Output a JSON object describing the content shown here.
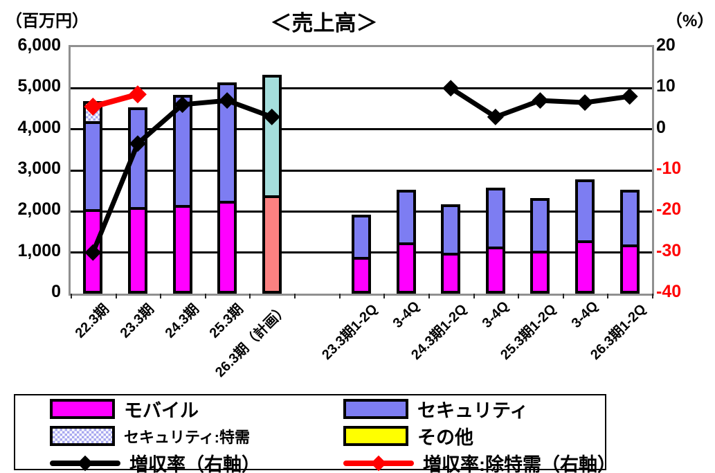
{
  "chart_data": {
    "type": "bar",
    "subtype": "stacked-bars-with-growth-lines",
    "title": "＜売上高＞",
    "left_axis_unit": "（百万円）",
    "right_axis_unit": "（%）",
    "ylim_left": [
      0,
      6000
    ],
    "ylim_right": [
      -40,
      20
    ],
    "yticks_left": [
      "6,000",
      "5,000",
      "4,000",
      "3,000",
      "2,000",
      "1,000",
      "0"
    ],
    "yticks_right": [
      "20",
      "10",
      "0",
      "-10",
      "-20",
      "-30",
      "-40"
    ],
    "grid": "horizontal",
    "categories": [
      "22.3期",
      "23.3期",
      "24.3期",
      "25.3期",
      "26.3期（計画）",
      "",
      "23.3期1-2Q",
      "3-4Q",
      "24.3期1-2Q",
      "3-4Q",
      "25.3期1-2Q",
      "3-4Q",
      "26.3期1-2Q"
    ],
    "bars": [
      {
        "label": "22.3期",
        "total": 4800,
        "segments": [
          {
            "series": "モバイル",
            "color": "mobile",
            "value": 2050
          },
          {
            "series": "セキュリティ",
            "color": "security",
            "value": 2200
          },
          {
            "series": "セキュリティ:特需",
            "color": "tokuju",
            "pattern": "checker",
            "value": 550
          }
        ]
      },
      {
        "label": "23.3期",
        "total": 4600,
        "segments": [
          {
            "series": "モバイル",
            "color": "mobile",
            "value": 2100
          },
          {
            "series": "セキュリティ",
            "color": "security",
            "value": 2500
          }
        ]
      },
      {
        "label": "24.3期",
        "total": 4900,
        "segments": [
          {
            "series": "モバイル",
            "color": "mobile",
            "value": 2150
          },
          {
            "series": "セキュリティ",
            "color": "security",
            "value": 2750
          }
        ]
      },
      {
        "label": "25.3期",
        "total": 5200,
        "segments": [
          {
            "series": "モバイル",
            "color": "mobile",
            "value": 2250
          },
          {
            "series": "セキュリティ",
            "color": "security",
            "value": 2950
          }
        ]
      },
      {
        "label": "26.3期（計画）",
        "total": 5400,
        "segments": [
          {
            "series": "モバイル（計画）",
            "color": "mobile_plan",
            "value": 2400
          },
          {
            "series": "セキュリティ（計画）",
            "color": "security_plan",
            "value": 3000
          }
        ]
      },
      {
        "label": "",
        "total": 0,
        "segments": []
      },
      {
        "label": "23.3期1-2Q",
        "total": 2000,
        "segments": [
          {
            "series": "モバイル",
            "color": "mobile",
            "value": 900
          },
          {
            "series": "セキュリティ",
            "color": "security",
            "value": 1100
          }
        ]
      },
      {
        "label": "3-4Q",
        "total": 2600,
        "segments": [
          {
            "series": "モバイル",
            "color": "mobile",
            "value": 1250
          },
          {
            "series": "セキュリティ",
            "color": "security",
            "value": 1350
          }
        ]
      },
      {
        "label": "24.3期1-2Q",
        "total": 2250,
        "segments": [
          {
            "series": "モバイル",
            "color": "mobile",
            "value": 1000
          },
          {
            "series": "セキュリティ",
            "color": "security",
            "value": 1250
          }
        ]
      },
      {
        "label": "3-4Q",
        "total": 2650,
        "segments": [
          {
            "series": "モバイル",
            "color": "mobile",
            "value": 1150
          },
          {
            "series": "セキュリティ",
            "color": "security",
            "value": 1500
          }
        ]
      },
      {
        "label": "25.3期1-2Q",
        "total": 2400,
        "segments": [
          {
            "series": "モバイル",
            "color": "mobile",
            "value": 1050
          },
          {
            "series": "セキュリティ",
            "color": "security",
            "value": 1350
          }
        ]
      },
      {
        "label": "3-4Q",
        "total": 2850,
        "segments": [
          {
            "series": "モバイル",
            "color": "mobile",
            "value": 1300
          },
          {
            "series": "セキュリティ",
            "color": "security",
            "value": 1550
          }
        ]
      },
      {
        "label": "26.3期1-2Q",
        "total": 2600,
        "segments": [
          {
            "series": "モバイル",
            "color": "mobile",
            "value": 1200
          },
          {
            "series": "セキュリティ",
            "color": "security",
            "value": 1400
          }
        ]
      }
    ],
    "lines": [
      {
        "name": "増収率（右軸）",
        "axis": "right",
        "color": "#000000",
        "width": 7,
        "marker": 12,
        "segments": [
          [
            {
              "slot": 0,
              "value": -30
            },
            {
              "slot": 1,
              "value": -3.5
            },
            {
              "slot": 2,
              "value": 6
            },
            {
              "slot": 3,
              "value": 7
            },
            {
              "slot": 4,
              "value": 3
            }
          ],
          [
            {
              "slot": 8,
              "value": 10
            },
            {
              "slot": 9,
              "value": 3
            },
            {
              "slot": 10,
              "value": 7
            },
            {
              "slot": 11,
              "value": 6.5
            },
            {
              "slot": 12,
              "value": 8
            }
          ]
        ]
      },
      {
        "name": "増収率:除特需（右軸）",
        "axis": "right",
        "color": "#FF0000",
        "width": 8,
        "marker": 13,
        "segments": [
          [
            {
              "slot": 0,
              "value": 5.5
            },
            {
              "slot": 1,
              "value": 8.5
            }
          ]
        ]
      }
    ]
  },
  "colors": {
    "mobile": "#FF00FF",
    "security": "#7D7DF2",
    "tokuju_a": "#A9A9F0",
    "tokuju_b": "#FFFFFF",
    "mobile_plan": "#FB8181",
    "security_plan": "#A5DEDC",
    "other": "#FFFF00",
    "line_black": "#000000",
    "line_red": "#FF0000",
    "negative_tick": "#FF0000",
    "plot_border": "#909090"
  },
  "legend": {
    "items": [
      {
        "label": "モバイル",
        "swatch": "bar",
        "color": "mobile"
      },
      {
        "label": "セキュリティ",
        "swatch": "bar",
        "color": "security"
      },
      {
        "label": "セキュリティ:特需",
        "swatch": "checker",
        "color": "tokuju_a",
        "condensed": true
      },
      {
        "label": "その他",
        "swatch": "bar",
        "color": "other"
      },
      {
        "label": "増収率（右軸）",
        "swatch": "line",
        "color": "line_black"
      },
      {
        "label": "増収率:除特需（右軸）",
        "swatch": "line",
        "color": "line_red"
      }
    ]
  }
}
